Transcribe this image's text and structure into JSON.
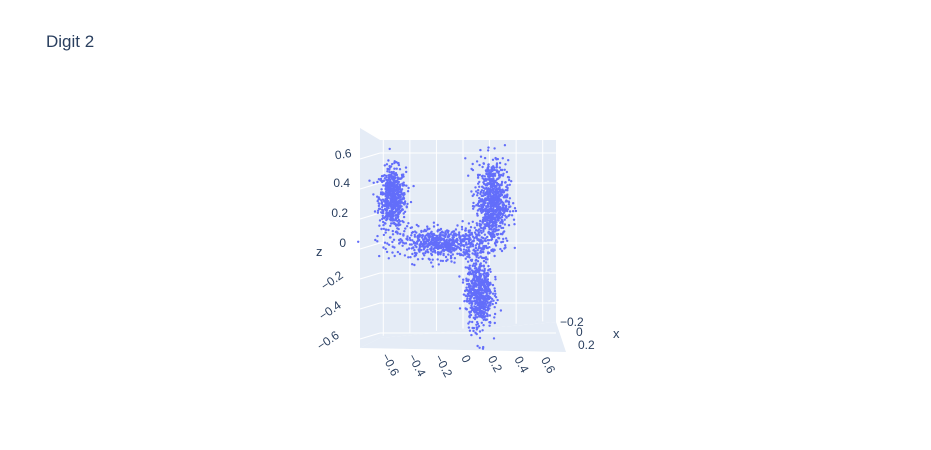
{
  "chart_data": {
    "type": "scatter",
    "title": "Digit 2",
    "xlabel": "x",
    "zlabel": "z",
    "marker_color": "#636efa",
    "background_color": "#e5ecf6",
    "grid": true,
    "x_ticks": [
      "−0.2",
      "0",
      "0.2"
    ],
    "y_ticks": [
      "−0.6",
      "−0.4",
      "−0.2",
      "0",
      "0.2",
      "0.4",
      "0.6"
    ],
    "z_ticks": [
      "0.6",
      "0.4",
      "0.2",
      "0",
      "−0.2",
      "−0.4",
      "−0.6"
    ],
    "y_range": [
      -0.7,
      0.7
    ],
    "z_range": [
      -0.7,
      0.7
    ],
    "clusters": [
      {
        "name": "upper-left-blob",
        "y_center": -0.53,
        "z_center": 0.3,
        "y_spread": 0.05,
        "z_spread": 0.1,
        "count": 650
      },
      {
        "name": "horizontal-bar",
        "y_center": -0.15,
        "z_center": 0.0,
        "y_spread": 0.17,
        "z_spread": 0.05,
        "count": 650
      },
      {
        "name": "upper-right-arm",
        "y_center": 0.22,
        "z_center": 0.27,
        "y_spread": 0.06,
        "z_spread": 0.14,
        "count": 800
      },
      {
        "name": "lower-stem",
        "y_center": 0.12,
        "z_center": -0.33,
        "y_spread": 0.05,
        "z_spread": 0.12,
        "count": 650
      }
    ]
  }
}
